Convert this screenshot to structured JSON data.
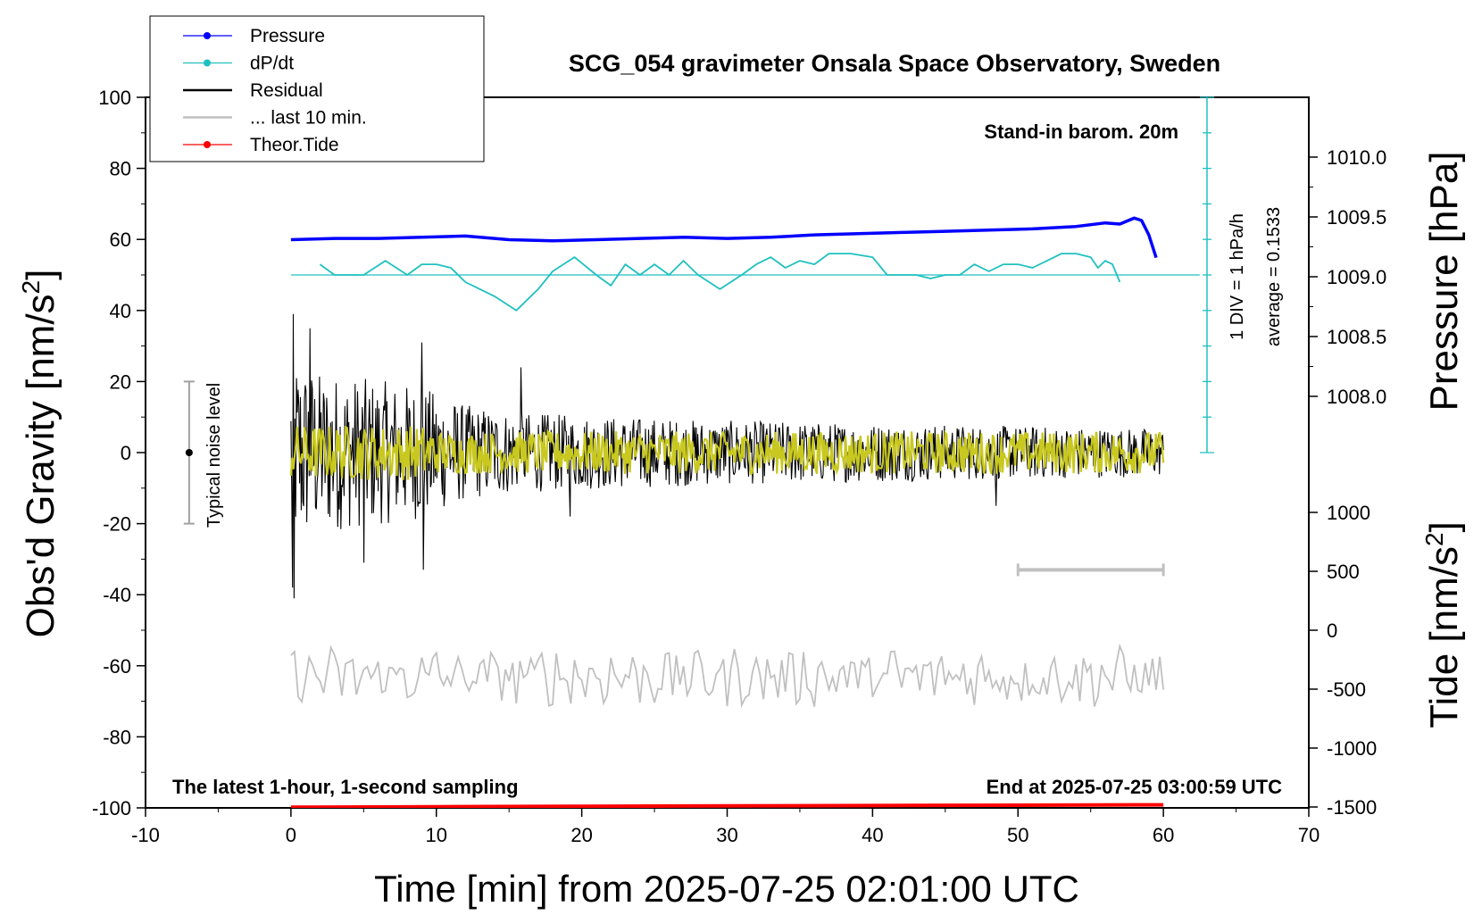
{
  "chart_data": {
    "type": "line",
    "title": "SCG_054 gravimeter Onsala Space Observatory, Sweden",
    "xlabel": "Time [min] from 2025-07-25 02:01:00 UTC",
    "ylabel_left": "Obs'd Gravity [nm/s",
    "ylabel_left_sup": "2",
    "ylabel_left_close": "]",
    "ylabel_right_pressure": "Pressure [hPa]",
    "ylabel_right_tide": "Tide [nm/s",
    "ylabel_right_tide_sup": "2",
    "ylabel_right_tide_close": "]",
    "xlim": [
      -10,
      70
    ],
    "ylim": [
      -100,
      100
    ],
    "x_ticks": [
      "-10",
      "0",
      "10",
      "20",
      "30",
      "40",
      "50",
      "60",
      "70"
    ],
    "y_ticks": [
      "100",
      "80",
      "60",
      "40",
      "20",
      "0",
      "-20",
      "-40",
      "-60",
      "-80",
      "-100"
    ],
    "pressure_ticks": [
      "1010.0",
      "1009.5",
      "1009.0",
      "1008.5",
      "1008.0"
    ],
    "pressure_tick_values": [
      1010.0,
      1009.5,
      1009.0,
      1008.5,
      1008.0
    ],
    "tide_ticks": [
      "1000",
      "500",
      "0",
      "-500",
      "-1000",
      "-1500"
    ],
    "tide_tick_values": [
      1000,
      500,
      0,
      -500,
      -1000,
      -1500
    ],
    "legend": [
      {
        "name": "Pressure",
        "color": "#0000ff",
        "marker": true
      },
      {
        "name": "dP/dt",
        "color": "#20c0c0",
        "marker": true
      },
      {
        "name": "Residual",
        "color": "#000000",
        "marker": false
      },
      {
        "name": "... last 10 min.",
        "color": "#c0c0c0",
        "marker": false
      },
      {
        "name": "Theor.Tide",
        "color": "#ff0000",
        "marker": true
      }
    ],
    "annotations": {
      "stand_in": "Stand-in barom. 20m",
      "bottom_left": "The latest 1-hour, 1-second sampling",
      "bottom_right": "End at 2025-07-25 03:00:59 UTC",
      "noise_label": "Typical noise level",
      "div_label": "1 DIV = 1 hPa/h",
      "average_label": "average = 0.1533"
    },
    "noise_bar": {
      "x": -7,
      "y_min": -20,
      "y_max": 20
    },
    "last10_bar": {
      "x_min": 50,
      "x_max": 60,
      "y": -33
    },
    "series": [
      {
        "name": "Pressure",
        "color": "#0000ff",
        "unit": "hPa",
        "x": [
          0,
          3,
          6,
          9,
          12,
          15,
          18,
          21,
          24,
          27,
          30,
          33,
          36,
          39,
          42,
          45,
          48,
          51,
          54,
          56,
          57,
          58,
          58.5,
          59,
          59.5
        ],
        "values": [
          1009.31,
          1009.32,
          1009.32,
          1009.33,
          1009.34,
          1009.31,
          1009.3,
          1009.31,
          1009.32,
          1009.33,
          1009.32,
          1009.33,
          1009.35,
          1009.36,
          1009.37,
          1009.38,
          1009.39,
          1009.4,
          1009.42,
          1009.45,
          1009.44,
          1009.49,
          1009.47,
          1009.35,
          1009.16
        ]
      },
      {
        "name": "dP/dt",
        "color": "#20c0c0",
        "unit": "nm/s2 (display)",
        "x": [
          2,
          3,
          4,
          5,
          6.5,
          8,
          9,
          10,
          11,
          12,
          13,
          14,
          15.5,
          17,
          18,
          19.5,
          21,
          22,
          23,
          24,
          25,
          26,
          27,
          28,
          29.5,
          31,
          32,
          33,
          34,
          35,
          36,
          37,
          38.5,
          40,
          41,
          42,
          43,
          44,
          45,
          46,
          47,
          48,
          49,
          50,
          51,
          52,
          53,
          54,
          55,
          55.5,
          56,
          56.5,
          57
        ],
        "values": [
          53,
          50,
          50,
          50,
          54,
          50,
          53,
          53,
          52,
          48,
          46,
          44,
          40,
          46,
          51,
          55,
          50,
          47,
          53,
          50,
          53,
          50,
          54,
          50,
          46,
          50,
          53,
          55,
          52,
          54,
          53,
          56,
          56,
          55,
          50,
          50,
          50,
          49,
          50,
          50,
          53,
          51,
          53,
          53,
          52,
          54,
          56,
          56,
          55,
          52,
          54,
          53,
          48
        ]
      },
      {
        "name": "Theor.Tide",
        "color": "#ff0000",
        "unit": "nm/s2",
        "x": [
          0,
          10,
          20,
          30,
          40,
          50,
          60
        ],
        "values": [
          -1502,
          -1498,
          -1494,
          -1491,
          -1488,
          -1485,
          -1482
        ]
      }
    ],
    "residual": {
      "name": "Residual",
      "color": "#000000",
      "x_start": 0,
      "x_end": 60,
      "amplitude_envelope": [
        [
          0,
          38
        ],
        [
          2,
          30
        ],
        [
          5,
          28
        ],
        [
          9,
          25
        ],
        [
          12,
          18
        ],
        [
          16,
          15
        ],
        [
          20,
          14
        ],
        [
          30,
          12
        ],
        [
          40,
          11
        ],
        [
          50,
          10
        ],
        [
          60,
          9
        ]
      ],
      "spikes": [
        [
          0.1,
          -38
        ],
        [
          0.15,
          39
        ],
        [
          0.2,
          -41
        ],
        [
          1.3,
          35
        ],
        [
          5,
          -31
        ],
        [
          9,
          31
        ],
        [
          9.1,
          -33
        ],
        [
          15.8,
          24
        ],
        [
          19.2,
          -18
        ],
        [
          48.5,
          -15
        ]
      ]
    },
    "residual_smooth": {
      "name": "Residual (smoothed)",
      "color": "#c8c820",
      "amplitude": 6
    },
    "last10": {
      "name": "... last 10 min.",
      "color": "#c0c0c0",
      "x_start": 0,
      "x_end": 60,
      "center": -63,
      "amplitude": 7
    }
  }
}
